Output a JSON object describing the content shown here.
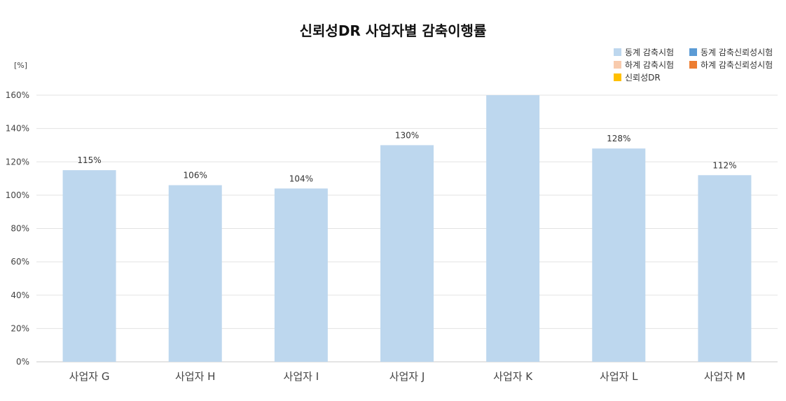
{
  "chart_data": {
    "type": "bar",
    "title": "신뢰성DR 사업자별 감축이행률",
    "ylabel": "[%]",
    "xlabel": "",
    "categories": [
      "사업자 G",
      "사업자 H",
      "사업자 I",
      "사업자 J",
      "사업자 K",
      "사업자 L",
      "사업자 M"
    ],
    "series": [
      {
        "name": "동계 감축시험",
        "color": "#bdd7ee",
        "values": [
          115,
          106,
          104,
          130,
          160,
          128,
          112
        ],
        "data_labels": [
          "115%",
          "106%",
          "104%",
          "130%",
          "",
          "128%",
          "112%"
        ]
      }
    ],
    "ylim": [
      0,
      160
    ],
    "yticks": [
      0,
      20,
      40,
      60,
      80,
      100,
      120,
      140,
      160
    ],
    "ytick_labels": [
      "0%",
      "20%",
      "40%",
      "60%",
      "80%",
      "100%",
      "120%",
      "140%",
      "160%"
    ],
    "grid": true,
    "legend_position": "top-right",
    "legend": [
      {
        "label": "동계 감축시험",
        "color": "#bdd7ee"
      },
      {
        "label": "동계 감축신뢰성시험",
        "color": "#5b9bd5"
      },
      {
        "label": "하계 감축시험",
        "color": "#f8cbad"
      },
      {
        "label": "하계 감축신뢰성시험",
        "color": "#ed7d31"
      },
      {
        "label": "신뢰성DR",
        "color": "#ffc000"
      }
    ]
  }
}
